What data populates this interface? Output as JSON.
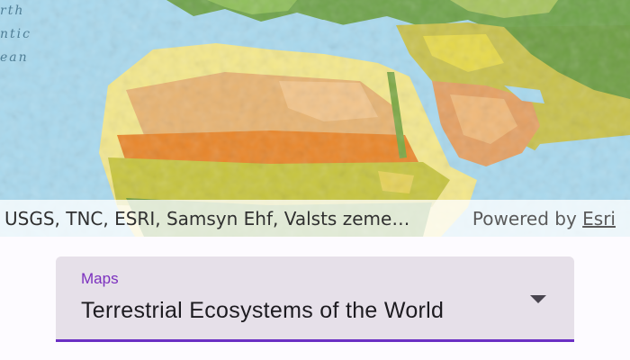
{
  "map": {
    "ocean_label_lines": [
      "rth",
      "ntic",
      "ean"
    ],
    "attribution": "USGS, TNC, ESRI, Samsyn Ehf, Valsts zemes dienests",
    "powered_by_prefix": "Powered by",
    "powered_by_link": "Esri"
  },
  "dropdown": {
    "label": "Maps",
    "value": "Terrestrial Ecosystems of the World"
  },
  "colors": {
    "ocean": "#a9d9ee",
    "accent": "#6b2fc4",
    "label": "#7b2fbe",
    "field_bg": "#e6e0e9"
  }
}
